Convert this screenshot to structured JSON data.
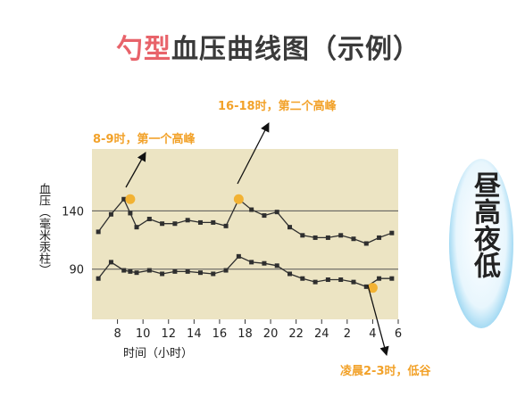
{
  "chart_data": {
    "type": "line",
    "title_accent": "勺型",
    "title_rest": "血压曲线图（示例）",
    "ylabel": "血压（毫米汞柱）",
    "xlabel": "时间（小时）",
    "y_ticks": [
      140,
      90
    ],
    "reference_lines": [
      140,
      90
    ],
    "ylim": [
      47,
      193
    ],
    "x_ticks": [
      "8",
      "10",
      "12",
      "14",
      "16",
      "18",
      "20",
      "22",
      "24",
      "2",
      "4",
      "6"
    ],
    "x_hours": [
      6.5,
      7.5,
      8.5,
      9,
      9.5,
      10.5,
      11.5,
      12.5,
      13.5,
      14.5,
      15.5,
      16.5,
      17.5,
      18.5,
      19.5,
      20.5,
      21.5,
      22.5,
      23.5,
      24.5,
      25.5,
      26.5,
      27.5,
      28.5,
      29.5
    ],
    "series": [
      {
        "values": [
          122,
          137,
          150,
          138,
          126,
          133,
          129,
          129,
          132,
          130,
          130,
          127,
          150,
          141,
          136,
          139,
          126,
          119,
          117,
          117,
          119,
          116,
          112,
          117,
          121
        ],
        "color": "#2f2f2f"
      },
      {
        "values": [
          82,
          96,
          89,
          88,
          87,
          89,
          86,
          88,
          88,
          87,
          86,
          89,
          101,
          96,
          95,
          93,
          86,
          82,
          79,
          81,
          81,
          79,
          75,
          82,
          82
        ],
        "color": "#2f2f2f"
      }
    ],
    "highlights": [
      {
        "hour": 9,
        "value": 150
      },
      {
        "hour": 17.5,
        "value": 150
      },
      {
        "hour": 28,
        "value": 74
      }
    ],
    "annotations": [
      {
        "text": "8-9时，第一个高峰"
      },
      {
        "text": "16-18时，第二个高峰"
      },
      {
        "text": "凌晨2-3时，低谷"
      }
    ],
    "badge_text": "昼高夜低",
    "colors": {
      "plot_bg": "#ece4c3",
      "reference_line": "#555555",
      "highlight": "#f2b233",
      "annotation": "#f2a22a",
      "title_accent": "#e8636a",
      "badge": "#29a7e1"
    }
  }
}
